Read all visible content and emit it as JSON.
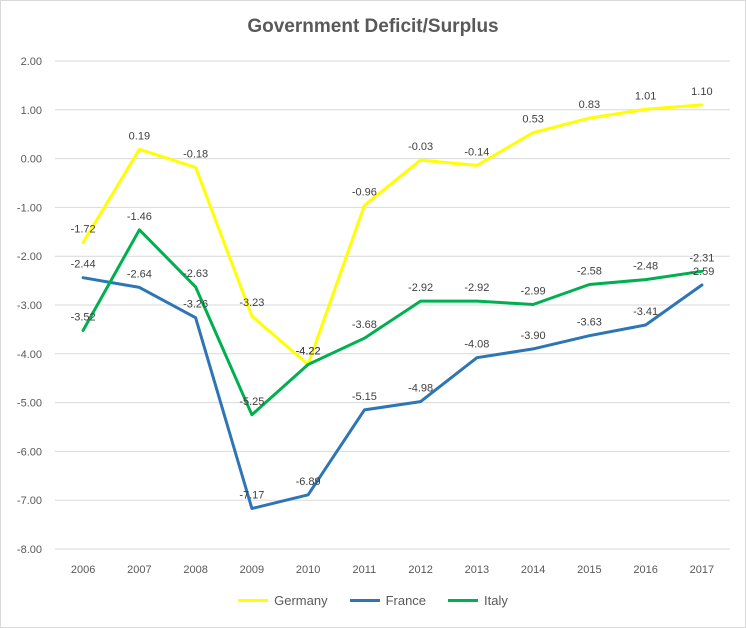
{
  "chart_data": {
    "type": "line",
    "title": "Government Deficit/Surplus",
    "xlabel": "",
    "ylabel": "",
    "x": [
      "2006",
      "2007",
      "2008",
      "2009",
      "2010",
      "2011",
      "2012",
      "2013",
      "2014",
      "2015",
      "2016",
      "2017"
    ],
    "ylim": [
      -8,
      2
    ],
    "yticks": [
      "2.00",
      "1.00",
      "0.00",
      "-1.00",
      "-2.00",
      "-3.00",
      "-4.00",
      "-5.00",
      "-6.00",
      "-7.00",
      "-8.00"
    ],
    "grid": true,
    "legend": "bottom",
    "series": [
      {
        "name": "Germany",
        "color": "#ffff00",
        "values": [
          -1.72,
          0.19,
          -0.18,
          -3.23,
          -4.22,
          -0.96,
          -0.03,
          -0.14,
          0.53,
          0.83,
          1.01,
          1.1
        ],
        "labels": [
          "-1.72",
          "0.19",
          "-0.18",
          "-3.23",
          "-4.22",
          "-0.96",
          "-0.03",
          "-0.14",
          "0.53",
          "0.83",
          "1.01",
          "1.10"
        ]
      },
      {
        "name": "France",
        "color": "#2e75b6",
        "values": [
          -2.44,
          -2.64,
          -3.26,
          -7.17,
          -6.89,
          -5.15,
          -4.98,
          -4.08,
          -3.9,
          -3.63,
          -3.41,
          -2.59
        ],
        "labels": [
          "-2.44",
          "-2.64",
          "-3.26",
          "-7.17",
          "-6.89",
          "-5.15",
          "-4.98",
          "-4.08",
          "-3.90",
          "-3.63",
          "-3.41",
          "-2.59"
        ]
      },
      {
        "name": "Italy",
        "color": "#00b050",
        "values": [
          -3.52,
          -1.46,
          -2.63,
          -5.25,
          -4.22,
          -3.68,
          -2.92,
          -2.92,
          -2.99,
          -2.58,
          -2.48,
          -2.31
        ],
        "labels": [
          "-3.52",
          "-1.46",
          "-2.63",
          "-5.25",
          "-4.22",
          "-3.68",
          "-2.92",
          "-2.92",
          "-2.99",
          "-2.58",
          "-2.48",
          "-2.31"
        ]
      }
    ]
  }
}
